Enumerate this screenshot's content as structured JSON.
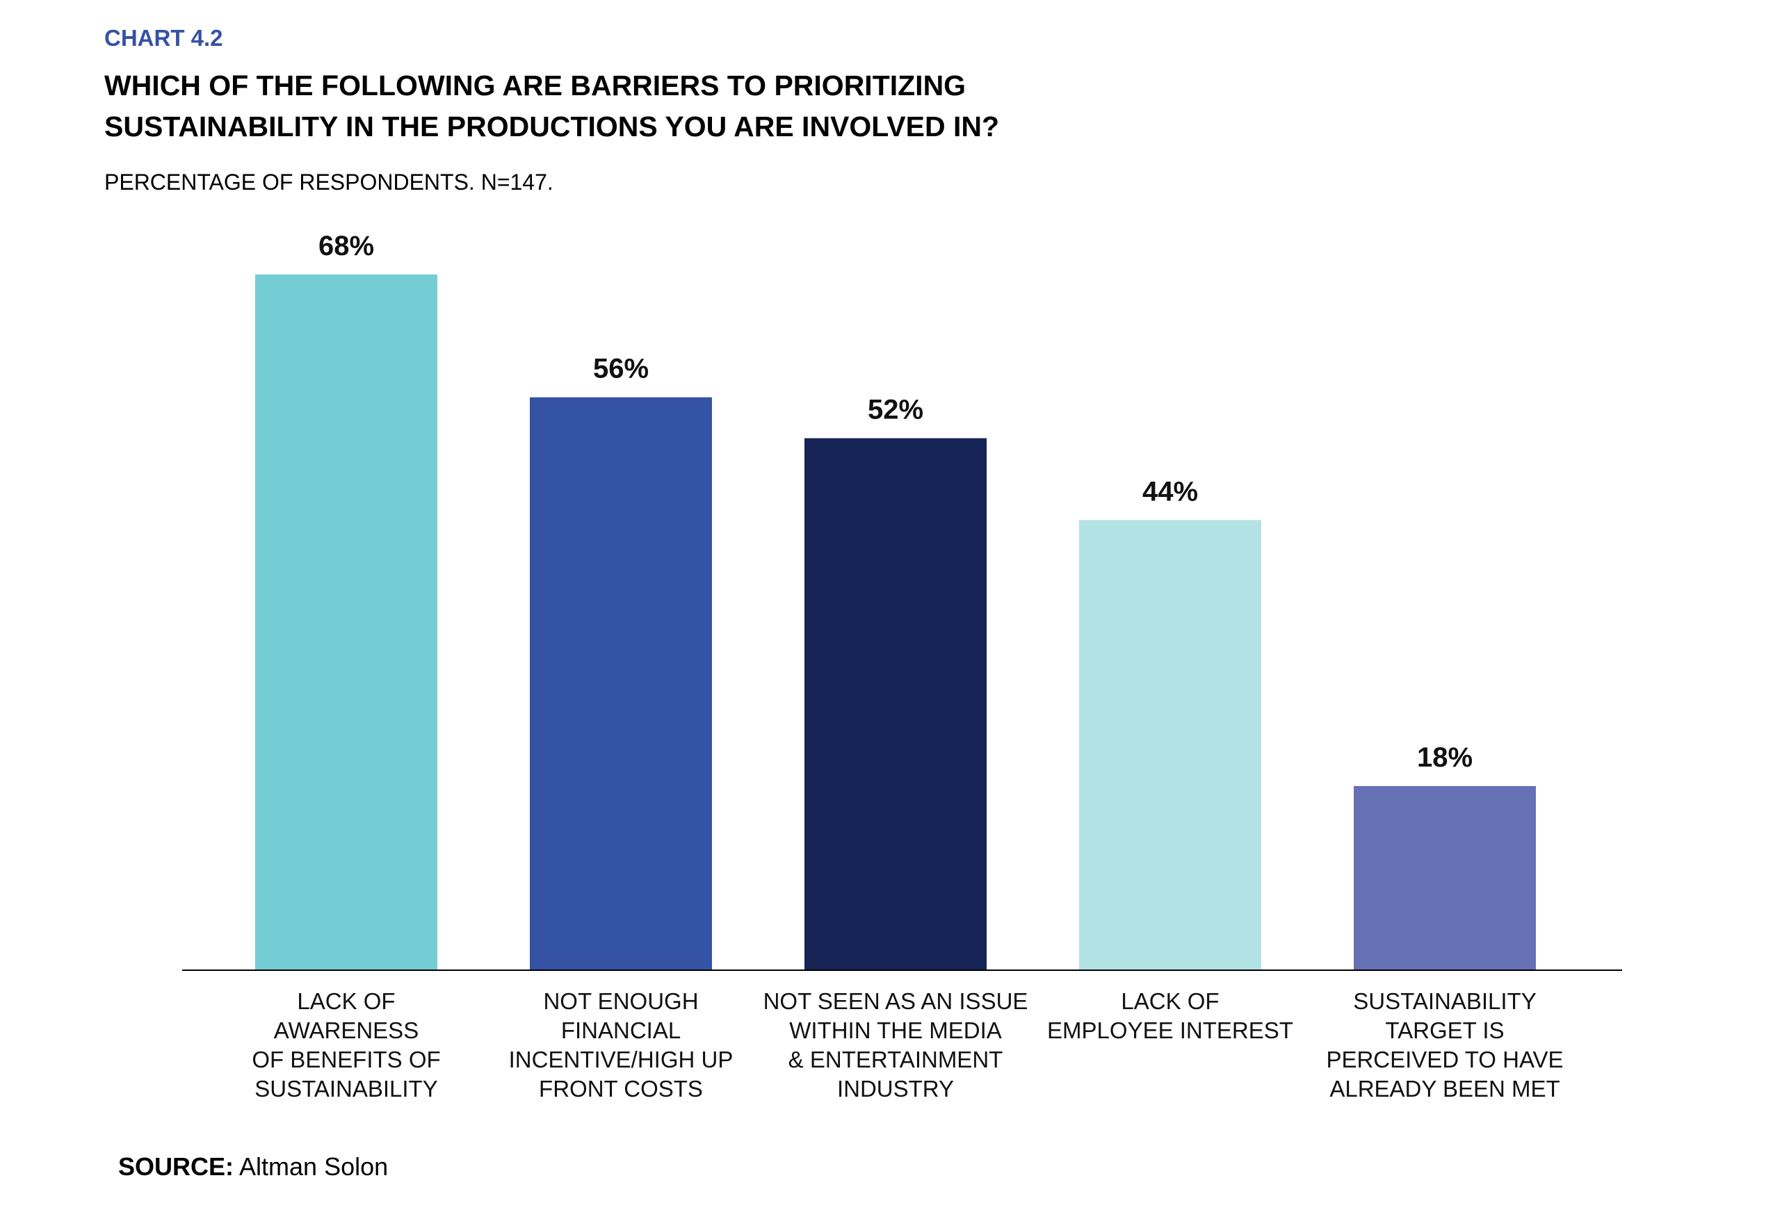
{
  "header": {
    "kicker": "CHART 4.2",
    "title_line1": "WHICH OF THE FOLLOWING ARE BARRIERS TO PRIORITIZING",
    "title_line2": "SUSTAINABILITY IN THE PRODUCTIONS YOU ARE INVOLVED IN?",
    "subtitle": "PERCENTAGE OF RESPONDENTS. N=147."
  },
  "source": {
    "label": "SOURCE:",
    "value": "Altman Solon"
  },
  "colors": {
    "kicker": "#3552a3",
    "bars": [
      "#74cdd4",
      "#3553a4",
      "#172456",
      "#b3e2e5",
      "#6571b3"
    ],
    "axis": "#000000"
  },
  "chart_data": {
    "type": "bar",
    "title": "WHICH OF THE FOLLOWING ARE BARRIERS TO PRIORITIZING SUSTAINABILITY IN THE PRODUCTIONS YOU ARE INVOLVED IN?",
    "ylabel": "PERCENTAGE OF RESPONDENTS",
    "xlabel": "",
    "ylim": [
      0,
      68
    ],
    "grid": false,
    "categories": [
      [
        "LACK OF",
        "AWARENESS",
        "OF BENEFITS OF",
        "SUSTAINABILITY"
      ],
      [
        "NOT ENOUGH",
        "FINANCIAL",
        "INCENTIVE/HIGH UP",
        "FRONT COSTS"
      ],
      [
        "NOT SEEN AS AN ISSUE",
        "WITHIN THE MEDIA",
        "& ENTERTAINMENT",
        "INDUSTRY"
      ],
      [
        "LACK OF",
        "EMPLOYEE INTEREST"
      ],
      [
        "SUSTAINABILITY",
        "TARGET IS",
        "PERCEIVED TO HAVE",
        "ALREADY BEEN MET"
      ]
    ],
    "values": [
      68,
      56,
      52,
      44,
      18
    ],
    "value_labels": [
      "68%",
      "56%",
      "52%",
      "44%",
      "18%"
    ]
  }
}
